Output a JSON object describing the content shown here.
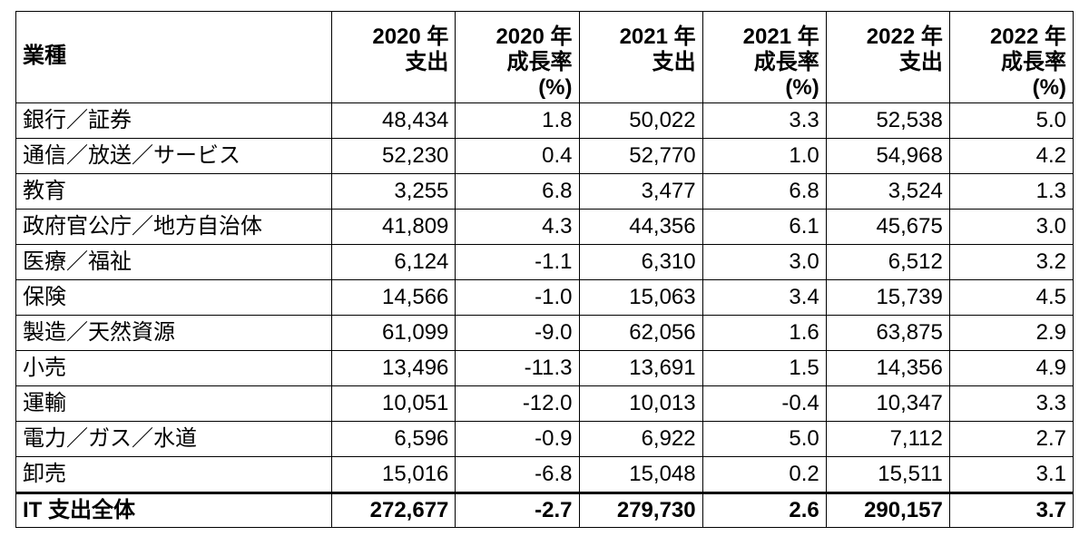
{
  "headers": [
    [
      "業種"
    ],
    [
      "2020 年",
      "支出"
    ],
    [
      "2020 年",
      "成長率",
      "(%)"
    ],
    [
      "2021 年",
      "支出"
    ],
    [
      "2021 年",
      "成長率",
      "(%)"
    ],
    [
      "2022 年",
      "支出"
    ],
    [
      "2022 年",
      "成長率",
      "(%)"
    ]
  ],
  "rows": [
    [
      "銀行／証券",
      "48,434",
      "1.8",
      "50,022",
      "3.3",
      "52,538",
      "5.0"
    ],
    [
      "通信／放送／サービス",
      "52,230",
      "0.4",
      "52,770",
      "1.0",
      "54,968",
      "4.2"
    ],
    [
      "教育",
      "3,255",
      "6.8",
      "3,477",
      "6.8",
      "3,524",
      "1.3"
    ],
    [
      "政府官公庁／地方自治体",
      "41,809",
      "4.3",
      "44,356",
      "6.1",
      "45,675",
      "3.0"
    ],
    [
      "医療／福祉",
      "6,124",
      "-1.1",
      "6,310",
      "3.0",
      "6,512",
      "3.2"
    ],
    [
      "保険",
      "14,566",
      "-1.0",
      "15,063",
      "3.4",
      "15,739",
      "4.5"
    ],
    [
      "製造／天然資源",
      "61,099",
      "-9.0",
      "62,056",
      "1.6",
      "63,875",
      "2.9"
    ],
    [
      "小売",
      "13,496",
      "-11.3",
      "13,691",
      "1.5",
      "14,356",
      "4.9"
    ],
    [
      "運輸",
      "10,051",
      "-12.0",
      "10,013",
      "-0.4",
      "10,347",
      "3.3"
    ],
    [
      "電力／ガス／水道",
      "6,596",
      "-0.9",
      "6,922",
      "5.0",
      "7,112",
      "2.7"
    ],
    [
      "卸売",
      "15,016",
      "-6.8",
      "15,048",
      "0.2",
      "15,511",
      "3.1"
    ],
    [
      "IT 支出全体",
      "272,677",
      "-2.7",
      "279,730",
      "2.6",
      "290,157",
      "3.7"
    ]
  ]
}
